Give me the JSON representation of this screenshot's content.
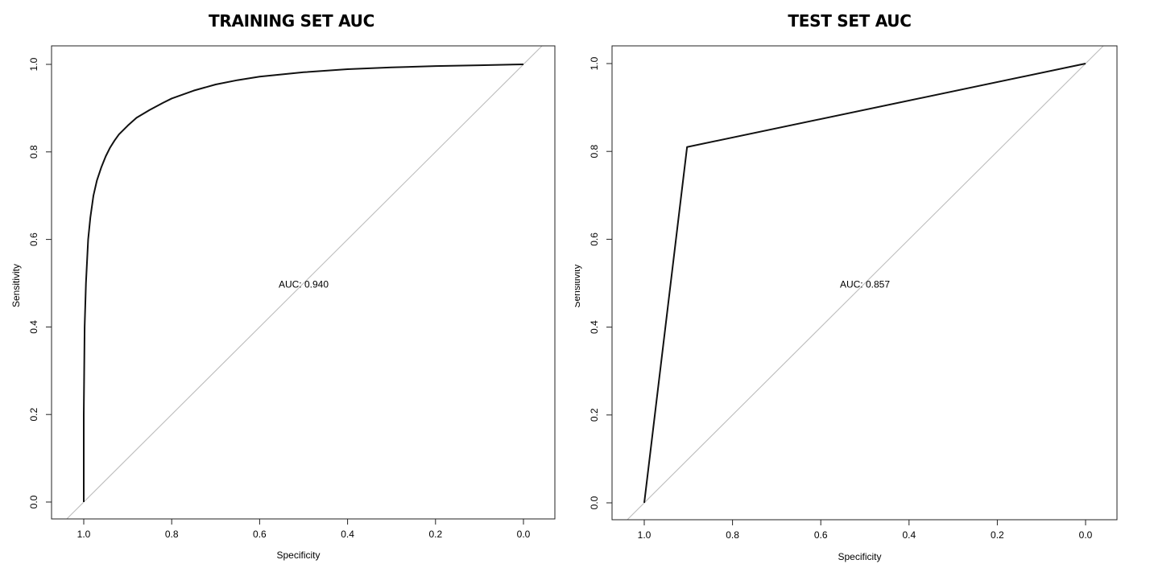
{
  "chart_data": [
    {
      "type": "line",
      "title": "TRAINING SET AUC",
      "xlabel": "Specificity",
      "ylabel": "Sensitivity",
      "xlim": [
        1.0,
        0.0
      ],
      "ylim": [
        0.0,
        1.0
      ],
      "x_ticks": [
        "1.0",
        "0.8",
        "0.6",
        "0.4",
        "0.2",
        "0.0"
      ],
      "y_ticks": [
        "0.0",
        "0.2",
        "0.4",
        "0.6",
        "0.8",
        "1.0"
      ],
      "annotation": "AUC: 0.940",
      "grid": false,
      "series": [
        {
          "x": [
            1.0,
            1.0,
            0.998,
            0.995,
            0.99,
            0.985,
            0.978,
            0.97,
            0.96,
            0.95,
            0.94,
            0.93,
            0.92,
            0.9,
            0.88,
            0.85,
            0.82,
            0.8,
            0.75,
            0.7,
            0.65,
            0.6,
            0.5,
            0.4,
            0.3,
            0.2,
            0.1,
            0.0
          ],
          "y": [
            0.0,
            0.2,
            0.4,
            0.5,
            0.6,
            0.65,
            0.7,
            0.735,
            0.765,
            0.79,
            0.81,
            0.826,
            0.84,
            0.86,
            0.878,
            0.896,
            0.912,
            0.922,
            0.94,
            0.954,
            0.964,
            0.972,
            0.982,
            0.989,
            0.993,
            0.996,
            0.998,
            1.0
          ]
        }
      ],
      "reference_line": {
        "from": [
          1.0,
          0.0
        ],
        "to": [
          0.0,
          1.0
        ]
      }
    },
    {
      "type": "line",
      "title": "TEST SET AUC",
      "xlabel": "Specificity",
      "ylabel": "Sensitivity",
      "xlim": [
        1.0,
        0.0
      ],
      "ylim": [
        0.0,
        1.0
      ],
      "x_ticks": [
        "1.0",
        "0.8",
        "0.6",
        "0.4",
        "0.2",
        "0.0"
      ],
      "y_ticks": [
        "0.0",
        "0.2",
        "0.4",
        "0.6",
        "0.8",
        "1.0"
      ],
      "annotation": "AUC: 0.857",
      "grid": false,
      "series": [
        {
          "x": [
            1.0,
            0.903,
            0.0
          ],
          "y": [
            0.0,
            0.81,
            1.0
          ]
        }
      ],
      "reference_line": {
        "from": [
          1.0,
          0.0
        ],
        "to": [
          0.0,
          1.0
        ]
      }
    }
  ]
}
